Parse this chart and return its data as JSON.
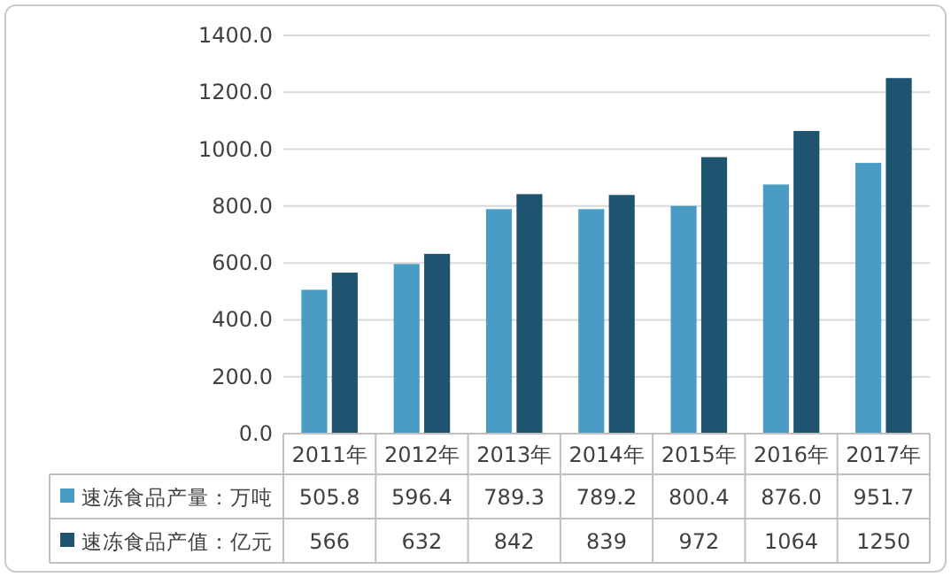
{
  "chart_data": {
    "type": "bar",
    "categories": [
      "2011年",
      "2012年",
      "2013年",
      "2014年",
      "2015年",
      "2016年",
      "2017年"
    ],
    "series": [
      {
        "name": "速冻食品产量：万吨",
        "color": "#4a9cc4",
        "values": [
          505.8,
          596.4,
          789.3,
          789.2,
          800.4,
          876.0,
          951.7
        ],
        "value_labels": [
          "505.8",
          "596.4",
          "789.3",
          "789.2",
          "800.4",
          "876.0",
          "951.7"
        ]
      },
      {
        "name": "速冻食品产值：亿元",
        "color": "#1f5470",
        "values": [
          566,
          632,
          842,
          839,
          972,
          1064,
          1250
        ],
        "value_labels": [
          "566",
          "632",
          "842",
          "839",
          "972",
          "1064",
          "1250"
        ]
      }
    ],
    "ylim": [
      0,
      1400
    ],
    "yticks": [
      {
        "value": 0,
        "label": "0.0"
      },
      {
        "value": 200,
        "label": "200.0"
      },
      {
        "value": 400,
        "label": "400.0"
      },
      {
        "value": 600,
        "label": "600.0"
      },
      {
        "value": 800,
        "label": "800.0"
      },
      {
        "value": 1000,
        "label": "1000.0"
      },
      {
        "value": 1200,
        "label": "1200.0"
      },
      {
        "value": 1400,
        "label": "1400.0"
      }
    ],
    "grid": "y",
    "legend": "bottom"
  }
}
